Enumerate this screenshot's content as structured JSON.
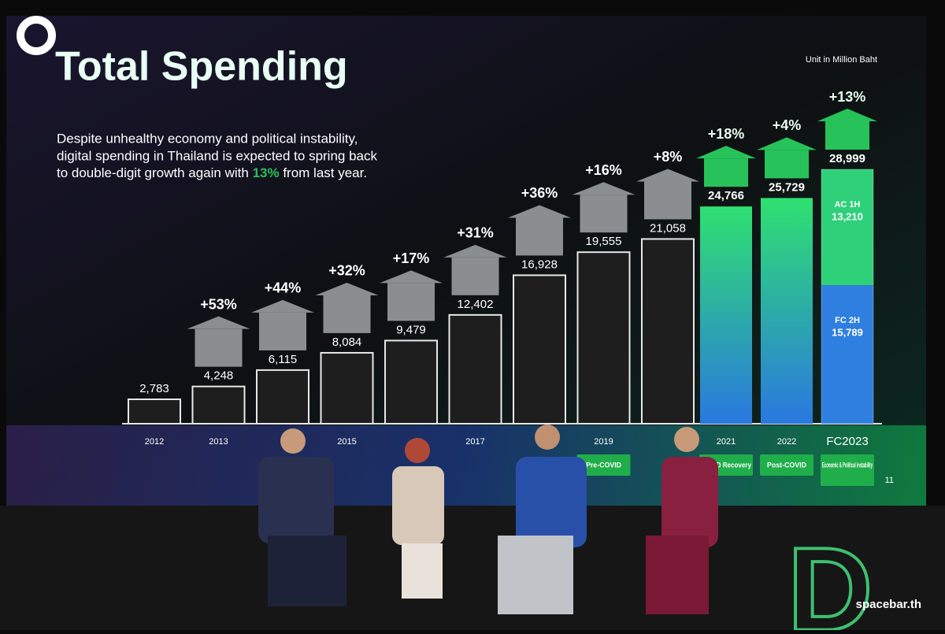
{
  "chart_data": {
    "type": "bar",
    "title": "Total Spending",
    "subtitle": [
      "Despite unhealthy economy and political instability,",
      "digital spending in Thailand is expected to spring back",
      "to double-digit growth again with",
      "13%",
      "from last year."
    ],
    "unit_note": "Unit in Million Baht",
    "categories": [
      "2012",
      "2013",
      null,
      "2015",
      null,
      "2017",
      null,
      "2019",
      null,
      "2021",
      "2022",
      "FC2023"
    ],
    "values": [
      2783,
      4248,
      6115,
      8084,
      9479,
      12402,
      16928,
      19555,
      21058,
      24766,
      25729,
      28999
    ],
    "value_labels": [
      "2,783",
      "4,248",
      "6,115",
      "8,084",
      "9,479",
      "12,402",
      "16,928",
      "19,555",
      "21,058",
      "24,766",
      "25,729",
      "28,999"
    ],
    "growth": [
      null,
      53,
      44,
      32,
      17,
      31,
      36,
      16,
      8,
      18,
      4,
      13
    ],
    "growth_labels": [
      null,
      "+53%",
      "+44%",
      "+32%",
      "+17%",
      "+31%",
      "+36%",
      "+16%",
      "+8%",
      "+18%",
      "+4%",
      "+13%"
    ],
    "phases": [
      null,
      null,
      null,
      null,
      null,
      null,
      null,
      "Pre-COVID",
      null,
      "COVID Recovery",
      "Post-COVID",
      "Economic & Political instability"
    ],
    "forecast_segments": [
      {
        "name": "FC 2H",
        "value": 15789,
        "value_label": "15,789",
        "color": "#2f7fe0"
      },
      {
        "name": "AC 1H",
        "value": 13210,
        "value_label": "13,210",
        "color": "#2fd07a"
      }
    ],
    "color": "#1e1e1e",
    "highlight_color": "#27c35a",
    "page_number": "11",
    "watermark": "spacebar.th"
  }
}
